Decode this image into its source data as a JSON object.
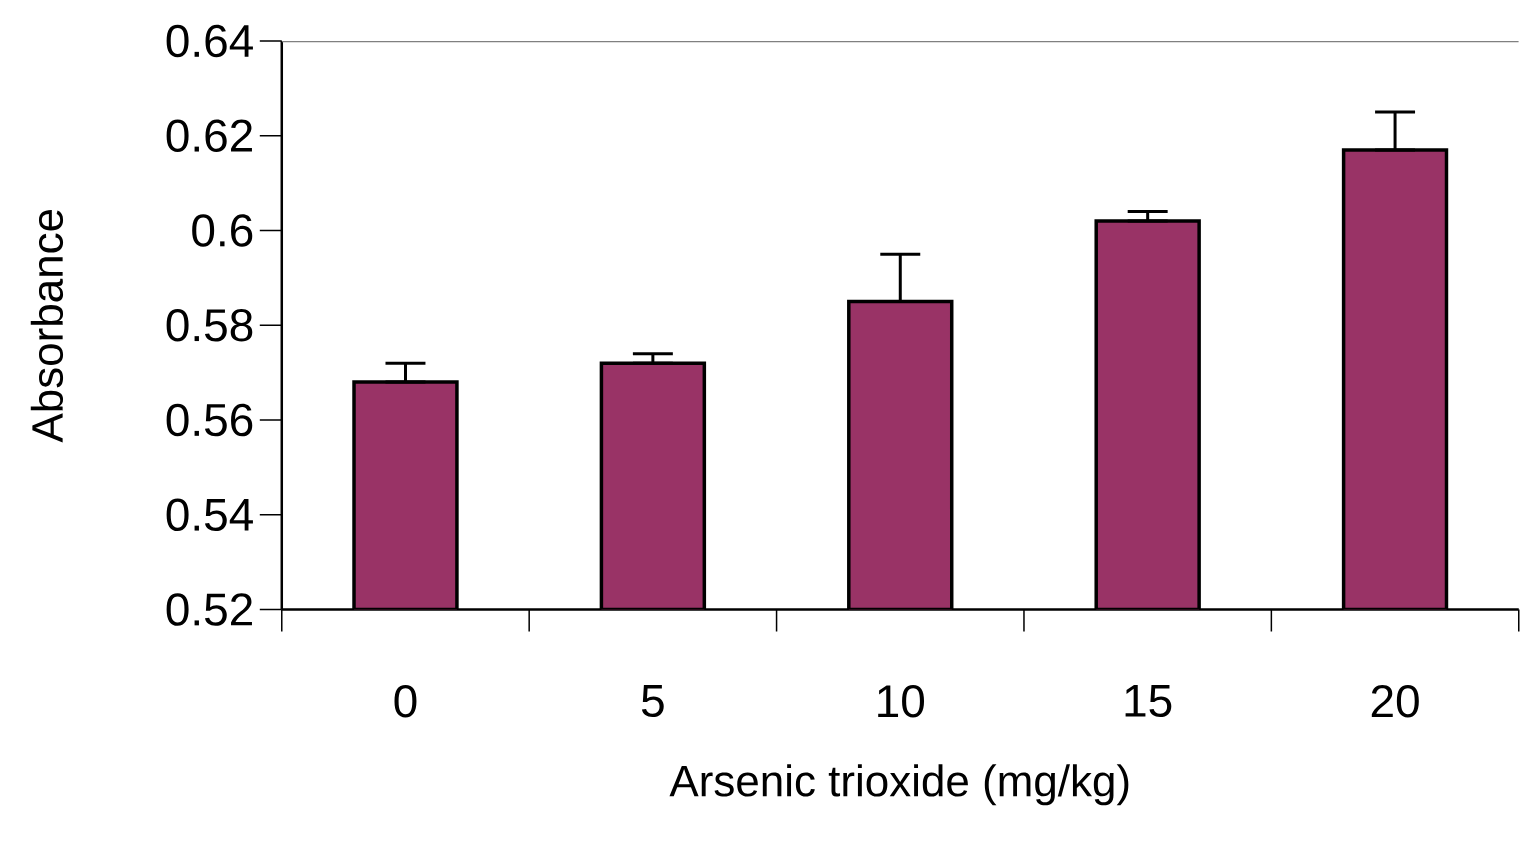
{
  "chart_data": {
    "type": "bar",
    "xlabel": "Arsenic trioxide (mg/kg)",
    "ylabel": "Absorbance",
    "categories": [
      "0",
      "5",
      "10",
      "15",
      "20"
    ],
    "values": [
      0.568,
      0.572,
      0.585,
      0.602,
      0.617
    ],
    "errors": [
      [
        0.568,
        0.572
      ],
      [
        0.572,
        0.574
      ],
      [
        0.585,
        0.595
      ],
      [
        0.602,
        0.604
      ],
      [
        0.617,
        0.625
      ]
    ],
    "color": "#993366",
    "ylim": [
      0.52,
      0.64
    ],
    "yticks": [
      0.52,
      0.54,
      0.56,
      0.58,
      0.6,
      0.62,
      0.64
    ]
  }
}
